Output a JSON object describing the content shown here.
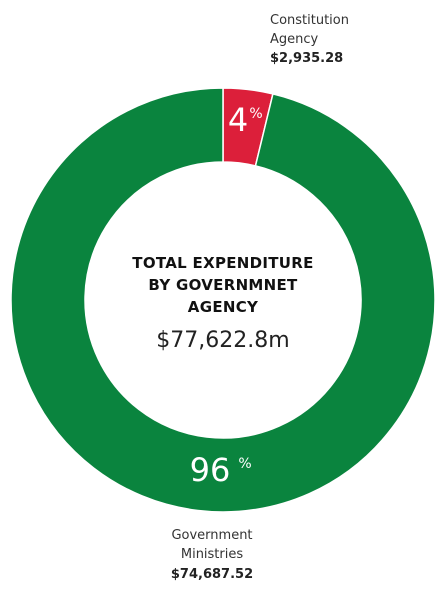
{
  "chart_data": {
    "type": "pie",
    "donut": true,
    "center": {
      "title_lines": [
        "TOTAL EXPENDITURE",
        "BY GOVERNMNET",
        "AGENCY"
      ],
      "total": "$77,622.8m"
    },
    "slices": [
      {
        "category_lines": [
          "Constitution",
          "Agency"
        ],
        "value": 2935.28,
        "value_label": "$2,935.28",
        "percent": 4,
        "percent_label": "4",
        "color": "#dc1f3a"
      },
      {
        "category_lines": [
          "Government",
          "Ministries"
        ],
        "value": 74687.52,
        "value_label": "$74,687.52",
        "percent": 96,
        "percent_label": "96",
        "color": "#0a843e"
      }
    ],
    "percent_symbol": "%"
  }
}
